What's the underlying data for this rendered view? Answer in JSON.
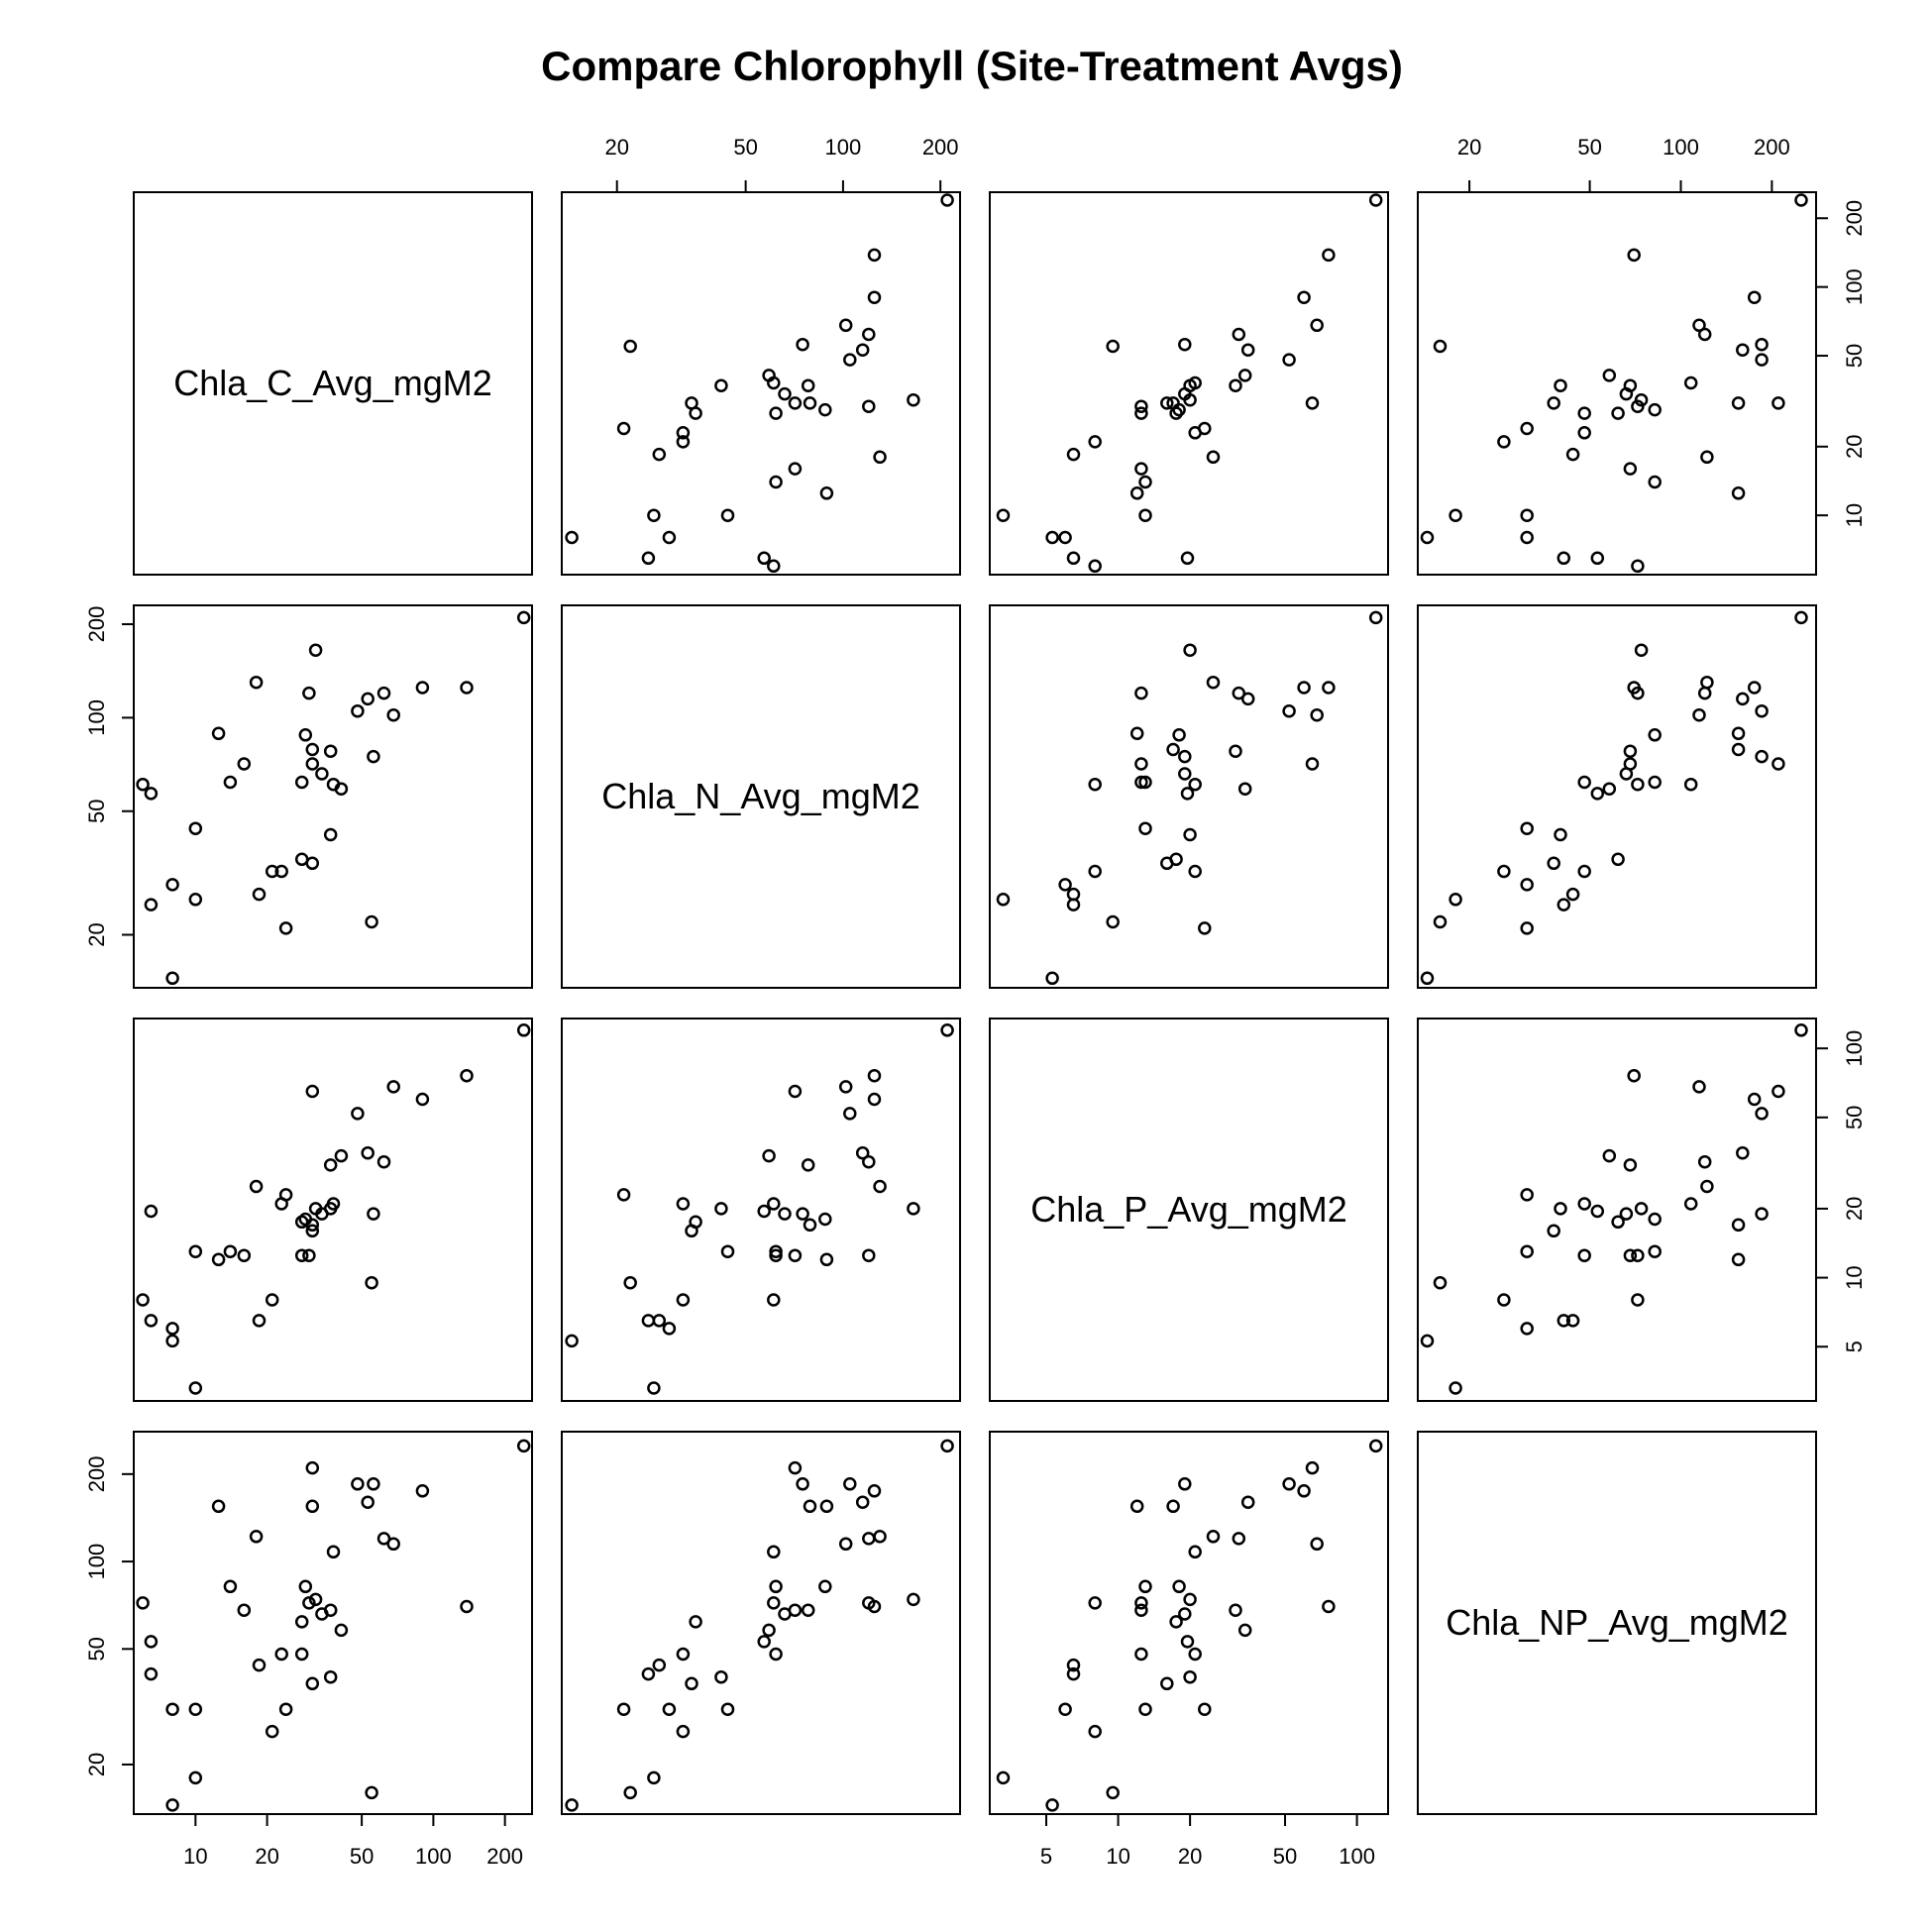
{
  "chart_data": {
    "type": "scatter",
    "title": "Compare Chlorophyll (Site-Treatment Avgs)",
    "log_scale": true,
    "grid": false,
    "variables": [
      "Chla_C_Avg_mgM2",
      "Chla_N_Avg_mgM2",
      "Chla_P_Avg_mgM2",
      "Chla_NP_Avg_mgM2"
    ],
    "axis_ranges": {
      "Chla_C_Avg_mgM2": [
        5.5,
        260
      ],
      "Chla_N_Avg_mgM2": [
        13.5,
        230
      ],
      "Chla_P_Avg_mgM2": [
        2.9,
        135
      ],
      "Chla_NP_Avg_mgM2": [
        13.5,
        280
      ]
    },
    "axis_ticks": {
      "Chla_C_Avg_mgM2": [
        10,
        20,
        50,
        100,
        200
      ],
      "Chla_N_Avg_mgM2": [
        20,
        50,
        100,
        200
      ],
      "Chla_P_Avg_mgM2": [
        5,
        10,
        20,
        50,
        100
      ],
      "Chla_NP_Avg_mgM2": [
        20,
        50,
        100,
        200
      ]
    },
    "observations": [
      {
        "C": 240,
        "N": 210,
        "P": 120,
        "NP": 250
      },
      {
        "C": 138,
        "N": 125,
        "P": 76,
        "NP": 70
      },
      {
        "C": 90,
        "N": 125,
        "P": 60,
        "NP": 175
      },
      {
        "C": 68,
        "N": 102,
        "P": 68,
        "NP": 115
      },
      {
        "C": 62,
        "N": 120,
        "P": 32,
        "NP": 120
      },
      {
        "C": 56,
        "N": 75,
        "P": 19,
        "NP": 185
      },
      {
        "C": 55,
        "N": 22,
        "P": 9.5,
        "NP": 16
      },
      {
        "C": 53,
        "N": 115,
        "P": 35,
        "NP": 160
      },
      {
        "C": 48,
        "N": 105,
        "P": 52,
        "NP": 185
      },
      {
        "C": 41,
        "N": 59,
        "P": 34,
        "NP": 58
      },
      {
        "C": 38,
        "N": 61,
        "P": 21,
        "NP": 108
      },
      {
        "C": 37,
        "N": 42,
        "P": 20,
        "NP": 40
      },
      {
        "C": 37,
        "N": 78,
        "P": 31,
        "NP": 68
      },
      {
        "C": 34,
        "N": 66,
        "P": 19,
        "NP": 66
      },
      {
        "C": 32,
        "N": 165,
        "P": 20,
        "NP": 74
      },
      {
        "C": 31,
        "N": 71,
        "P": 65,
        "NP": 210
      },
      {
        "C": 31,
        "N": 34,
        "P": 16,
        "NP": 38
      },
      {
        "C": 31,
        "N": 79,
        "P": 17,
        "NP": 155
      },
      {
        "C": 30,
        "N": 120,
        "P": 12.5,
        "NP": 72
      },
      {
        "C": 29,
        "N": 88,
        "P": 18,
        "NP": 82
      },
      {
        "C": 28,
        "N": 62,
        "P": 12.5,
        "NP": 48
      },
      {
        "C": 28,
        "N": 35,
        "P": 17.5,
        "NP": 62
      },
      {
        "C": 24,
        "N": 21,
        "P": 23,
        "NP": 31
      },
      {
        "C": 23,
        "N": 32,
        "P": 21,
        "NP": 48
      },
      {
        "C": 21,
        "N": 32,
        "P": 8,
        "NP": 26
      },
      {
        "C": 18.5,
        "N": 27,
        "P": 6.5,
        "NP": 44
      },
      {
        "C": 18,
        "N": 130,
        "P": 25,
        "NP": 122
      },
      {
        "C": 16,
        "N": 71,
        "P": 12.5,
        "NP": 68
      },
      {
        "C": 14,
        "N": 62,
        "P": 13,
        "NP": 82
      },
      {
        "C": 12.5,
        "N": 89,
        "P": 12,
        "NP": 155
      },
      {
        "C": 10,
        "N": 44,
        "P": 13,
        "NP": 31
      },
      {
        "C": 10,
        "N": 26,
        "P": 3.3,
        "NP": 18
      },
      {
        "C": 8,
        "N": 29,
        "P": 6,
        "NP": 31
      },
      {
        "C": 8,
        "N": 14.5,
        "P": 5.3,
        "NP": 14.5
      },
      {
        "C": 6.5,
        "N": 25,
        "P": 6.5,
        "NP": 41
      },
      {
        "C": 6.5,
        "N": 57,
        "P": 19.5,
        "NP": 53
      },
      {
        "C": 6,
        "N": 61,
        "P": 8,
        "NP": 72
      }
    ]
  }
}
